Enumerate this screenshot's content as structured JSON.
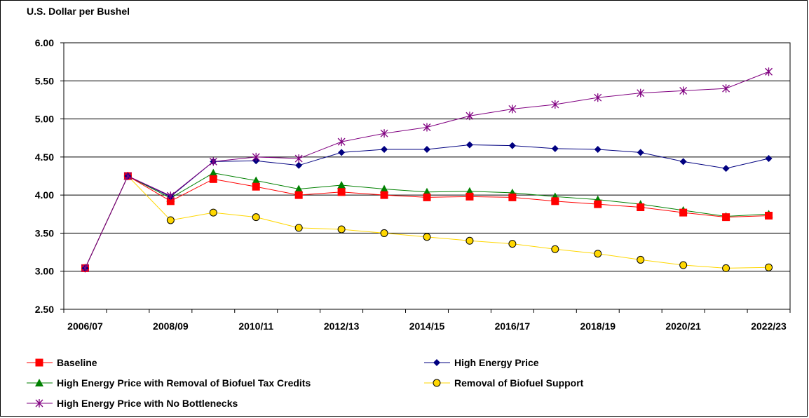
{
  "chart_data": {
    "type": "line",
    "ylabel": "U.S. Dollar per Bushel",
    "xlabel": "",
    "ylim": [
      2.5,
      6.0
    ],
    "yticks": [
      "2.50",
      "3.00",
      "3.50",
      "4.00",
      "4.50",
      "5.00",
      "5.50",
      "6.00"
    ],
    "x": [
      "2006/07",
      "2007/08",
      "2008/09",
      "2009/10",
      "2010/11",
      "2011/12",
      "2012/13",
      "2013/14",
      "2014/15",
      "2015/16",
      "2016/17",
      "2017/18",
      "2018/19",
      "2019/20",
      "2020/21",
      "2021/22",
      "2022/23"
    ],
    "xtick_labels": [
      "2006/07",
      "2008/09",
      "2010/11",
      "2012/13",
      "2014/15",
      "2016/17",
      "2018/19",
      "2020/21",
      "2022/23"
    ],
    "grid": true,
    "legend_position": "bottom",
    "series": [
      {
        "name": "Baseline",
        "color": "#ff0000",
        "marker": "square",
        "values": [
          3.04,
          4.25,
          3.92,
          4.21,
          4.11,
          4.0,
          4.04,
          4.0,
          3.97,
          3.98,
          3.97,
          3.92,
          3.88,
          3.84,
          3.77,
          3.71,
          3.73
        ]
      },
      {
        "name": "High Energy Price",
        "color": "#000080",
        "marker": "diamond",
        "values": [
          3.04,
          4.25,
          3.98,
          4.44,
          4.45,
          4.39,
          4.56,
          4.6,
          4.6,
          4.66,
          4.65,
          4.61,
          4.6,
          4.56,
          4.44,
          4.35,
          4.48
        ]
      },
      {
        "name": "High Energy Price with Removal of Biofuel Tax Credits",
        "color": "#008000",
        "marker": "triangle",
        "values": [
          3.04,
          4.25,
          3.96,
          4.29,
          4.19,
          4.08,
          4.13,
          4.08,
          4.04,
          4.05,
          4.03,
          3.98,
          3.94,
          3.88,
          3.8,
          3.72,
          3.75
        ]
      },
      {
        "name": "Removal of Biofuel Support",
        "color": "#ffd700",
        "marker": "circle",
        "values": [
          3.04,
          4.25,
          3.67,
          3.77,
          3.71,
          3.57,
          3.55,
          3.5,
          3.45,
          3.4,
          3.36,
          3.29,
          3.23,
          3.15,
          3.08,
          3.04,
          3.05
        ]
      },
      {
        "name": "High Energy Price with No Bottlenecks",
        "color": "#800080",
        "marker": "star",
        "values": [
          3.04,
          4.25,
          3.99,
          4.44,
          4.5,
          4.48,
          4.7,
          4.81,
          4.89,
          5.04,
          5.13,
          5.19,
          5.28,
          5.34,
          5.37,
          5.4,
          5.62
        ]
      }
    ]
  }
}
